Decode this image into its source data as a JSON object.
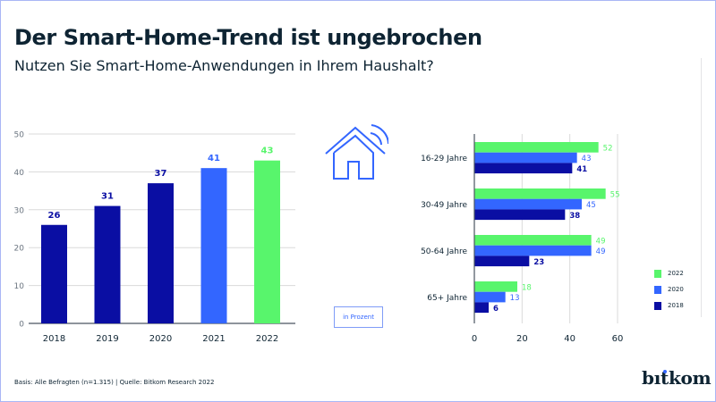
{
  "header": {
    "title": "Der Smart-Home-Trend ist ungebrochen",
    "subtitle": "Nutzen Sie Smart-Home-Anwendungen in Ihrem Haushalt?"
  },
  "footer": {
    "source": "Basis: Alle Befragten (n=1.315) | Quelle: Bitkom Research 2022"
  },
  "logo": {
    "text_b": "b",
    "text_i": "ı",
    "text_rest": "tkom"
  },
  "unit_label": "in Prozent",
  "icons": {
    "house": "smart-home-icon"
  },
  "colors": {
    "y2022": "#58f56c",
    "y2021": "#3366ff",
    "y2020": "#3366ff",
    "y2019": "#0a0ea3",
    "y2018": "#0a0ea3",
    "text": "#0e2433",
    "grid": "#dadada",
    "axis": "#4a5560"
  },
  "chart_data": [
    {
      "type": "bar",
      "title": "",
      "xlabel": "",
      "ylabel": "",
      "categories": [
        "2018",
        "2019",
        "2020",
        "2021",
        "2022"
      ],
      "values": [
        26,
        31,
        37,
        41,
        43
      ],
      "bar_colors": [
        "#0a0ea3",
        "#0a0ea3",
        "#0a0ea3",
        "#3366ff",
        "#58f56c"
      ],
      "ylim": [
        0,
        50
      ],
      "yticks": [
        0,
        10,
        20,
        30,
        40,
        50
      ],
      "grid": true,
      "data_labels": true
    },
    {
      "type": "bar",
      "orientation": "horizontal",
      "title": "",
      "xlabel": "",
      "ylabel": "",
      "categories": [
        "16-29 Jahre",
        "30-49 Jahre",
        "50-64 Jahre",
        "65+ Jahre"
      ],
      "series": [
        {
          "name": "2022",
          "color": "#58f56c",
          "values": [
            52,
            55,
            49,
            18
          ]
        },
        {
          "name": "2020",
          "color": "#3366ff",
          "values": [
            43,
            45,
            49,
            13
          ]
        },
        {
          "name": "2018",
          "color": "#0a0ea3",
          "values": [
            41,
            38,
            23,
            6
          ]
        }
      ],
      "xlim": [
        0,
        60
      ],
      "xticks": [
        0,
        20,
        40,
        60
      ],
      "grid": true,
      "legend": "bottom-right",
      "data_labels": true
    }
  ]
}
